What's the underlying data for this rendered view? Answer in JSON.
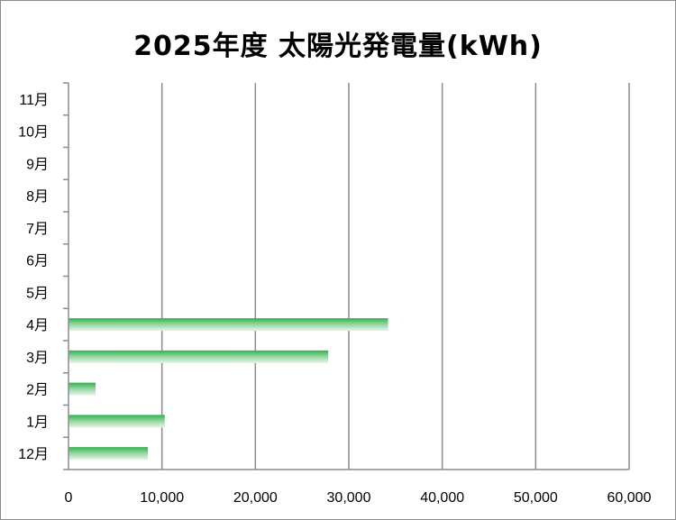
{
  "chart_data": {
    "type": "bar",
    "orientation": "horizontal",
    "title": "2025年度 太陽光発電量(kWh)",
    "categories": [
      "12月",
      "1月",
      "2月",
      "3月",
      "4月",
      "5月",
      "6月",
      "7月",
      "8月",
      "9月",
      "10月",
      "11月"
    ],
    "values": [
      8500,
      10300,
      2900,
      27800,
      34200,
      null,
      null,
      null,
      null,
      null,
      null,
      null
    ],
    "xlim": [
      0,
      60000
    ],
    "xticks": [
      0,
      10000,
      20000,
      30000,
      40000,
      50000,
      60000
    ],
    "xtick_labels": [
      "0",
      "10,000",
      "20,000",
      "30,000",
      "40,000",
      "50,000",
      "60,000"
    ],
    "grid": true,
    "legend": "none",
    "bar_color": "#2db34a"
  }
}
